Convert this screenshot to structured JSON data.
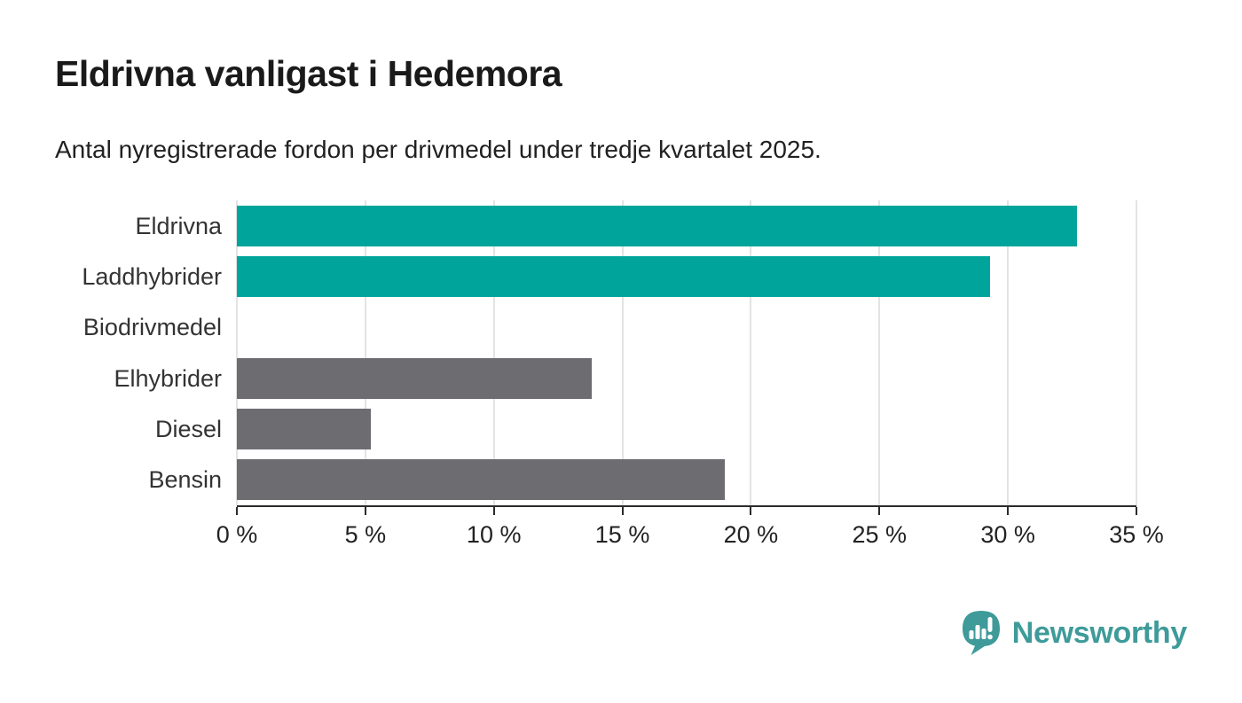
{
  "header": {
    "title": "Eldrivna vanligast i Hedemora",
    "subtitle": "Antal nyregistrerade fordon per drivmedel under tredje kvartalet 2025."
  },
  "chart_data": {
    "type": "bar",
    "orientation": "horizontal",
    "categories": [
      "Eldrivna",
      "Laddhybrider",
      "Biodrivmedel",
      "Elhybrider",
      "Diesel",
      "Bensin"
    ],
    "values": [
      32.7,
      29.3,
      0,
      13.8,
      5.2,
      19.0
    ],
    "bar_colors": [
      "#00a49b",
      "#00a49b",
      "#6c6c71",
      "#6c6c71",
      "#6c6c71",
      "#6c6c71"
    ],
    "title": "Eldrivna vanligast i Hedemora",
    "xlabel": "",
    "ylabel": "",
    "xlim": [
      0,
      35
    ],
    "x_ticks": [
      0,
      5,
      10,
      15,
      20,
      25,
      30,
      35
    ],
    "x_tick_suffix": " %",
    "grid": true,
    "legend": false
  },
  "colors": {
    "accent_teal": "#00a49b",
    "neutral_gray": "#6c6c71",
    "gridline": "#e3e3e3",
    "axis": "#2b2b2b",
    "brand_teal": "#3e9b99"
  },
  "branding": {
    "logo_text": "Newsworthy"
  }
}
